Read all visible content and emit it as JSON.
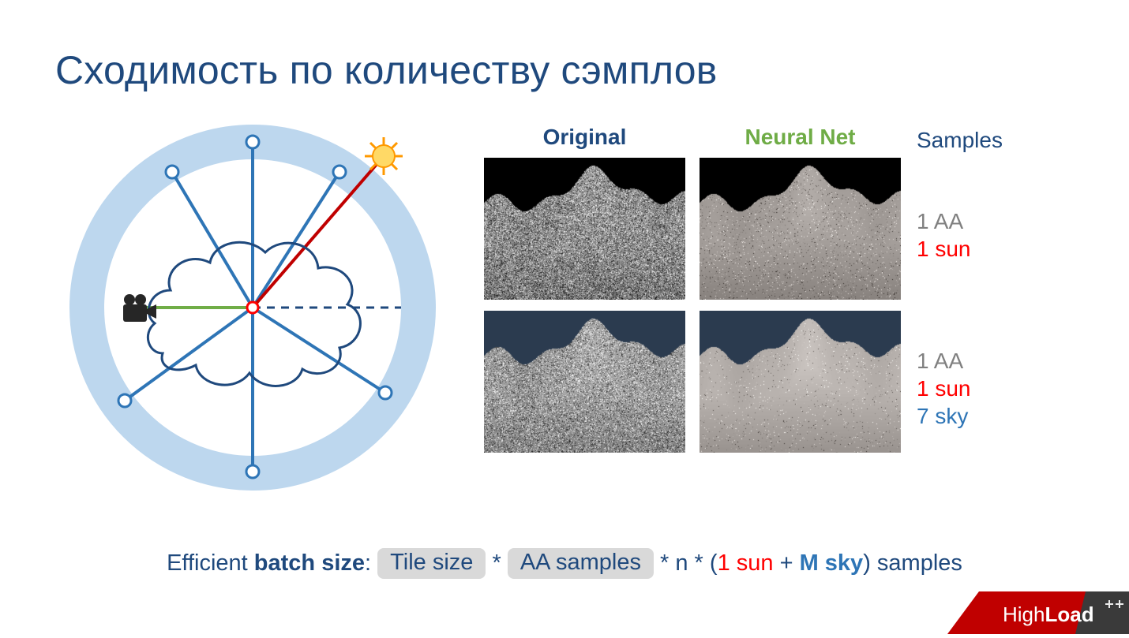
{
  "colors": {
    "title": "#1f497d",
    "text_dark": "#1f497d",
    "text_grey": "#808080",
    "accent_green": "#6fac46",
    "accent_red": "#ff0000",
    "accent_blue": "#2e75b6",
    "diagram_ring": "#bdd7ee",
    "diagram_blue_line": "#2e75b6",
    "diagram_red_line": "#c00000",
    "diagram_green_line": "#70ad47",
    "diagram_cloud": "#1f497d",
    "sun_fill": "#ffd966",
    "sun_stroke": "#ff9900",
    "pill_bg": "#d9d9d9",
    "footer_red": "#c00000",
    "footer_dark": "#3a3a3a"
  },
  "title": "Сходимость по количеству сэмплов",
  "headers": {
    "original": "Original",
    "neural": "Neural Net",
    "samples": "Samples"
  },
  "samples": {
    "row1": {
      "aa": "1 AA",
      "sun": "1 sun"
    },
    "row2": {
      "aa": "1 AA",
      "sun": "1 sun",
      "sky": "7 sky"
    }
  },
  "formula": {
    "prefix": "Efficient ",
    "batch": "batch size",
    "colon": ": ",
    "tile": "Tile size",
    "times1": " * ",
    "aa": "AA samples",
    "times2": " * n * (",
    "sun": "1 sun",
    "plus": " + ",
    "sky": "M sky",
    "close": ") samples"
  },
  "footer": {
    "high": "High",
    "load": "Load"
  },
  "render_images": {
    "row1": {
      "bg_top": "#000000",
      "bg_bottom": "#000000",
      "noise_density_orig": 0.65,
      "noise_density_nn": 0.08,
      "cloud_lightness_orig": 180,
      "cloud_lightness_nn": 200
    },
    "row2": {
      "bg_top": "#2b3b4f",
      "bg_bottom": "#2b3b4f",
      "noise_density_orig": 0.5,
      "noise_density_nn": 0.04,
      "cloud_lightness_orig": 200,
      "cloud_lightness_nn": 225
    }
  }
}
